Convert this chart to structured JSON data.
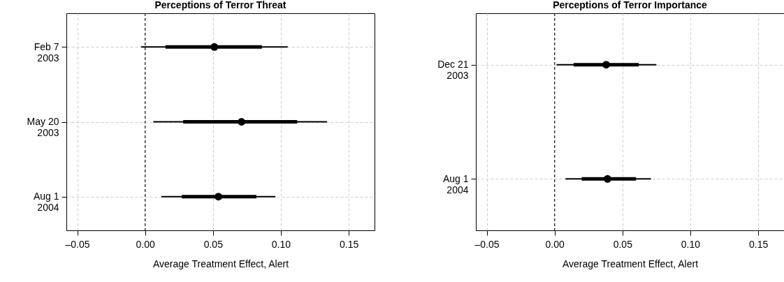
{
  "chart_data": [
    {
      "type": "scatter",
      "title": "Perceptions of Terror Threat",
      "xlabel": "Average Treatment Effect, Alert",
      "orientation": "horizontal",
      "categories": [
        "Feb 7\n2003",
        "May 20\n2003",
        "Aug 1\n2004"
      ],
      "legend": false,
      "series": [
        {
          "type": "bar",
          "color": "#000000",
          "base": [
            0.015,
            0.028,
            0.027
          ],
          "values": [
            0.071,
            0.084,
            0.055
          ]
        },
        {
          "color": "#000000",
          "marker": "circle",
          "values": [
            0.051,
            0.071,
            0.054
          ],
          "errors": [
            [
              -0.003,
              0.105
            ],
            [
              0.006,
              0.134
            ],
            [
              0.012,
              0.096
            ]
          ]
        }
      ],
      "xlim": [
        -0.058,
        0.169
      ],
      "xticks": [
        {
          "value": -0.05,
          "label": "–0.05"
        },
        {
          "value": 0,
          "label": "0.00"
        },
        {
          "value": 0.05,
          "label": "0.05"
        },
        {
          "value": 0.1,
          "label": "0.10"
        },
        {
          "value": 0.15,
          "label": "0.15"
        }
      ],
      "ref_lines": [
        {
          "axis": "x",
          "value": 0,
          "line_style": "dashed",
          "color": "#000000"
        }
      ],
      "grid": true
    },
    {
      "type": "scatter",
      "title": "Perceptions of Terror Importance",
      "xlabel": "Average Treatment Effect, Alert",
      "orientation": "horizontal",
      "categories": [
        "Dec 21\n2003",
        "Aug 1\n2004"
      ],
      "legend": false,
      "series": [
        {
          "type": "bar",
          "color": "#000000",
          "base": [
            0.014,
            0.02
          ],
          "values": [
            0.048,
            0.04
          ]
        },
        {
          "color": "#000000",
          "marker": "circle",
          "values": [
            0.038,
            0.039
          ],
          "errors": [
            [
              0.0015,
              0.075
            ],
            [
              0.008,
              0.071
            ]
          ]
        }
      ],
      "xlim": [
        -0.058,
        0.169
      ],
      "xticks": [
        {
          "value": -0.05,
          "label": "–0.05"
        },
        {
          "value": 0,
          "label": "0.00"
        },
        {
          "value": 0.05,
          "label": "0.05"
        },
        {
          "value": 0.1,
          "label": "0.10"
        },
        {
          "value": 0.15,
          "label": "0.15"
        }
      ],
      "ref_lines": [
        {
          "axis": "x",
          "value": 0,
          "line_style": "dashed",
          "color": "#000000"
        }
      ],
      "grid": true
    }
  ]
}
